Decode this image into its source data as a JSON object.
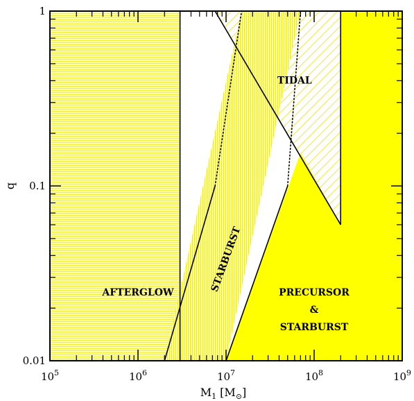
{
  "chart_data": {
    "type": "area",
    "xlabel": "M",
    "xlabel_subscript": "1",
    "xlabel_unit": "[M",
    "xlabel_unit_symbol": "⊙",
    "xlabel_unit_close": "]",
    "ylabel": "q",
    "xscale": "log",
    "yscale": "log",
    "xlim": [
      100000,
      1000000000
    ],
    "ylim": [
      0.01,
      1
    ],
    "x_ticks": [
      {
        "value": 100000,
        "base": "10",
        "exp": "5"
      },
      {
        "value": 1000000,
        "base": "10",
        "exp": "6"
      },
      {
        "value": 10000000,
        "base": "10",
        "exp": "7"
      },
      {
        "value": 100000000,
        "base": "10",
        "exp": "8"
      },
      {
        "value": 1000000000,
        "base": "10",
        "exp": "9"
      }
    ],
    "y_ticks": [
      {
        "value": 0.01,
        "label": "0.01"
      },
      {
        "value": 0.1,
        "label": "0.1"
      },
      {
        "value": 1,
        "label": "1"
      }
    ],
    "colors": {
      "afterglow_fill": "#ffff66",
      "starburst_fill": "#ffff44",
      "tidal_hatch": "#f0e840",
      "precursor_fill": "#ffff00",
      "line": "#000000"
    },
    "regions": [
      {
        "name": "AFTERGLOW",
        "polygon": [
          [
            100000,
            0.01
          ],
          [
            3000000,
            0.01
          ],
          [
            3000000,
            1
          ],
          [
            100000,
            1
          ]
        ]
      },
      {
        "name": "STARBURST",
        "polygon": [
          [
            2000000,
            0.01
          ],
          [
            10000000,
            0.01
          ],
          [
            70000000,
            1
          ],
          [
            15000000,
            1
          ]
        ]
      },
      {
        "name": "TIDAL",
        "polygon": [
          [
            7500000,
            1
          ],
          [
            200000000,
            1
          ],
          [
            200000000,
            0.06
          ]
        ]
      },
      {
        "name": "PRECURSOR & STARBURST",
        "polygon": [
          [
            10000000,
            0.01
          ],
          [
            1000000000,
            0.01
          ],
          [
            1000000000,
            1
          ],
          [
            200000000,
            1
          ],
          [
            200000000,
            0.06
          ],
          [
            70000000,
            0.155
          ]
        ]
      }
    ],
    "lines": [
      {
        "style": "solid",
        "points": [
          [
            3000000,
            0.01
          ],
          [
            3000000,
            1
          ]
        ]
      },
      {
        "style": "solid",
        "points": [
          [
            2000000,
            0.01
          ],
          [
            7500000,
            0.1
          ]
        ]
      },
      {
        "style": "dotted",
        "points": [
          [
            7500000,
            0.1
          ],
          [
            15000000,
            1
          ]
        ]
      },
      {
        "style": "solid",
        "points": [
          [
            10000000,
            0.01
          ],
          [
            50000000,
            0.1
          ]
        ]
      },
      {
        "style": "dotted",
        "points": [
          [
            50000000,
            0.1
          ],
          [
            70000000,
            1
          ]
        ]
      },
      {
        "style": "solid",
        "points": [
          [
            7500000,
            1
          ],
          [
            200000000,
            0.06
          ]
        ]
      },
      {
        "style": "solid",
        "points": [
          [
            200000000,
            0.06
          ],
          [
            200000000,
            1
          ]
        ]
      }
    ],
    "annotations": [
      {
        "text": "AFTERGLOW",
        "x": 1000000,
        "y": 0.0245,
        "rotate": 0
      },
      {
        "text": "STARBURST",
        "x": 10000000,
        "y": 0.038,
        "rotate": -70
      },
      {
        "text": "TIDAL",
        "x": 60000000,
        "y": 0.4,
        "rotate": 0
      },
      {
        "text": "PRECURSOR",
        "x": 100000000,
        "y": 0.0245,
        "rotate": 0
      },
      {
        "text": "&",
        "x": 100000000,
        "y": 0.0195,
        "rotate": 0
      },
      {
        "text": "STARBURST",
        "x": 100000000,
        "y": 0.0155,
        "rotate": 0
      }
    ]
  }
}
